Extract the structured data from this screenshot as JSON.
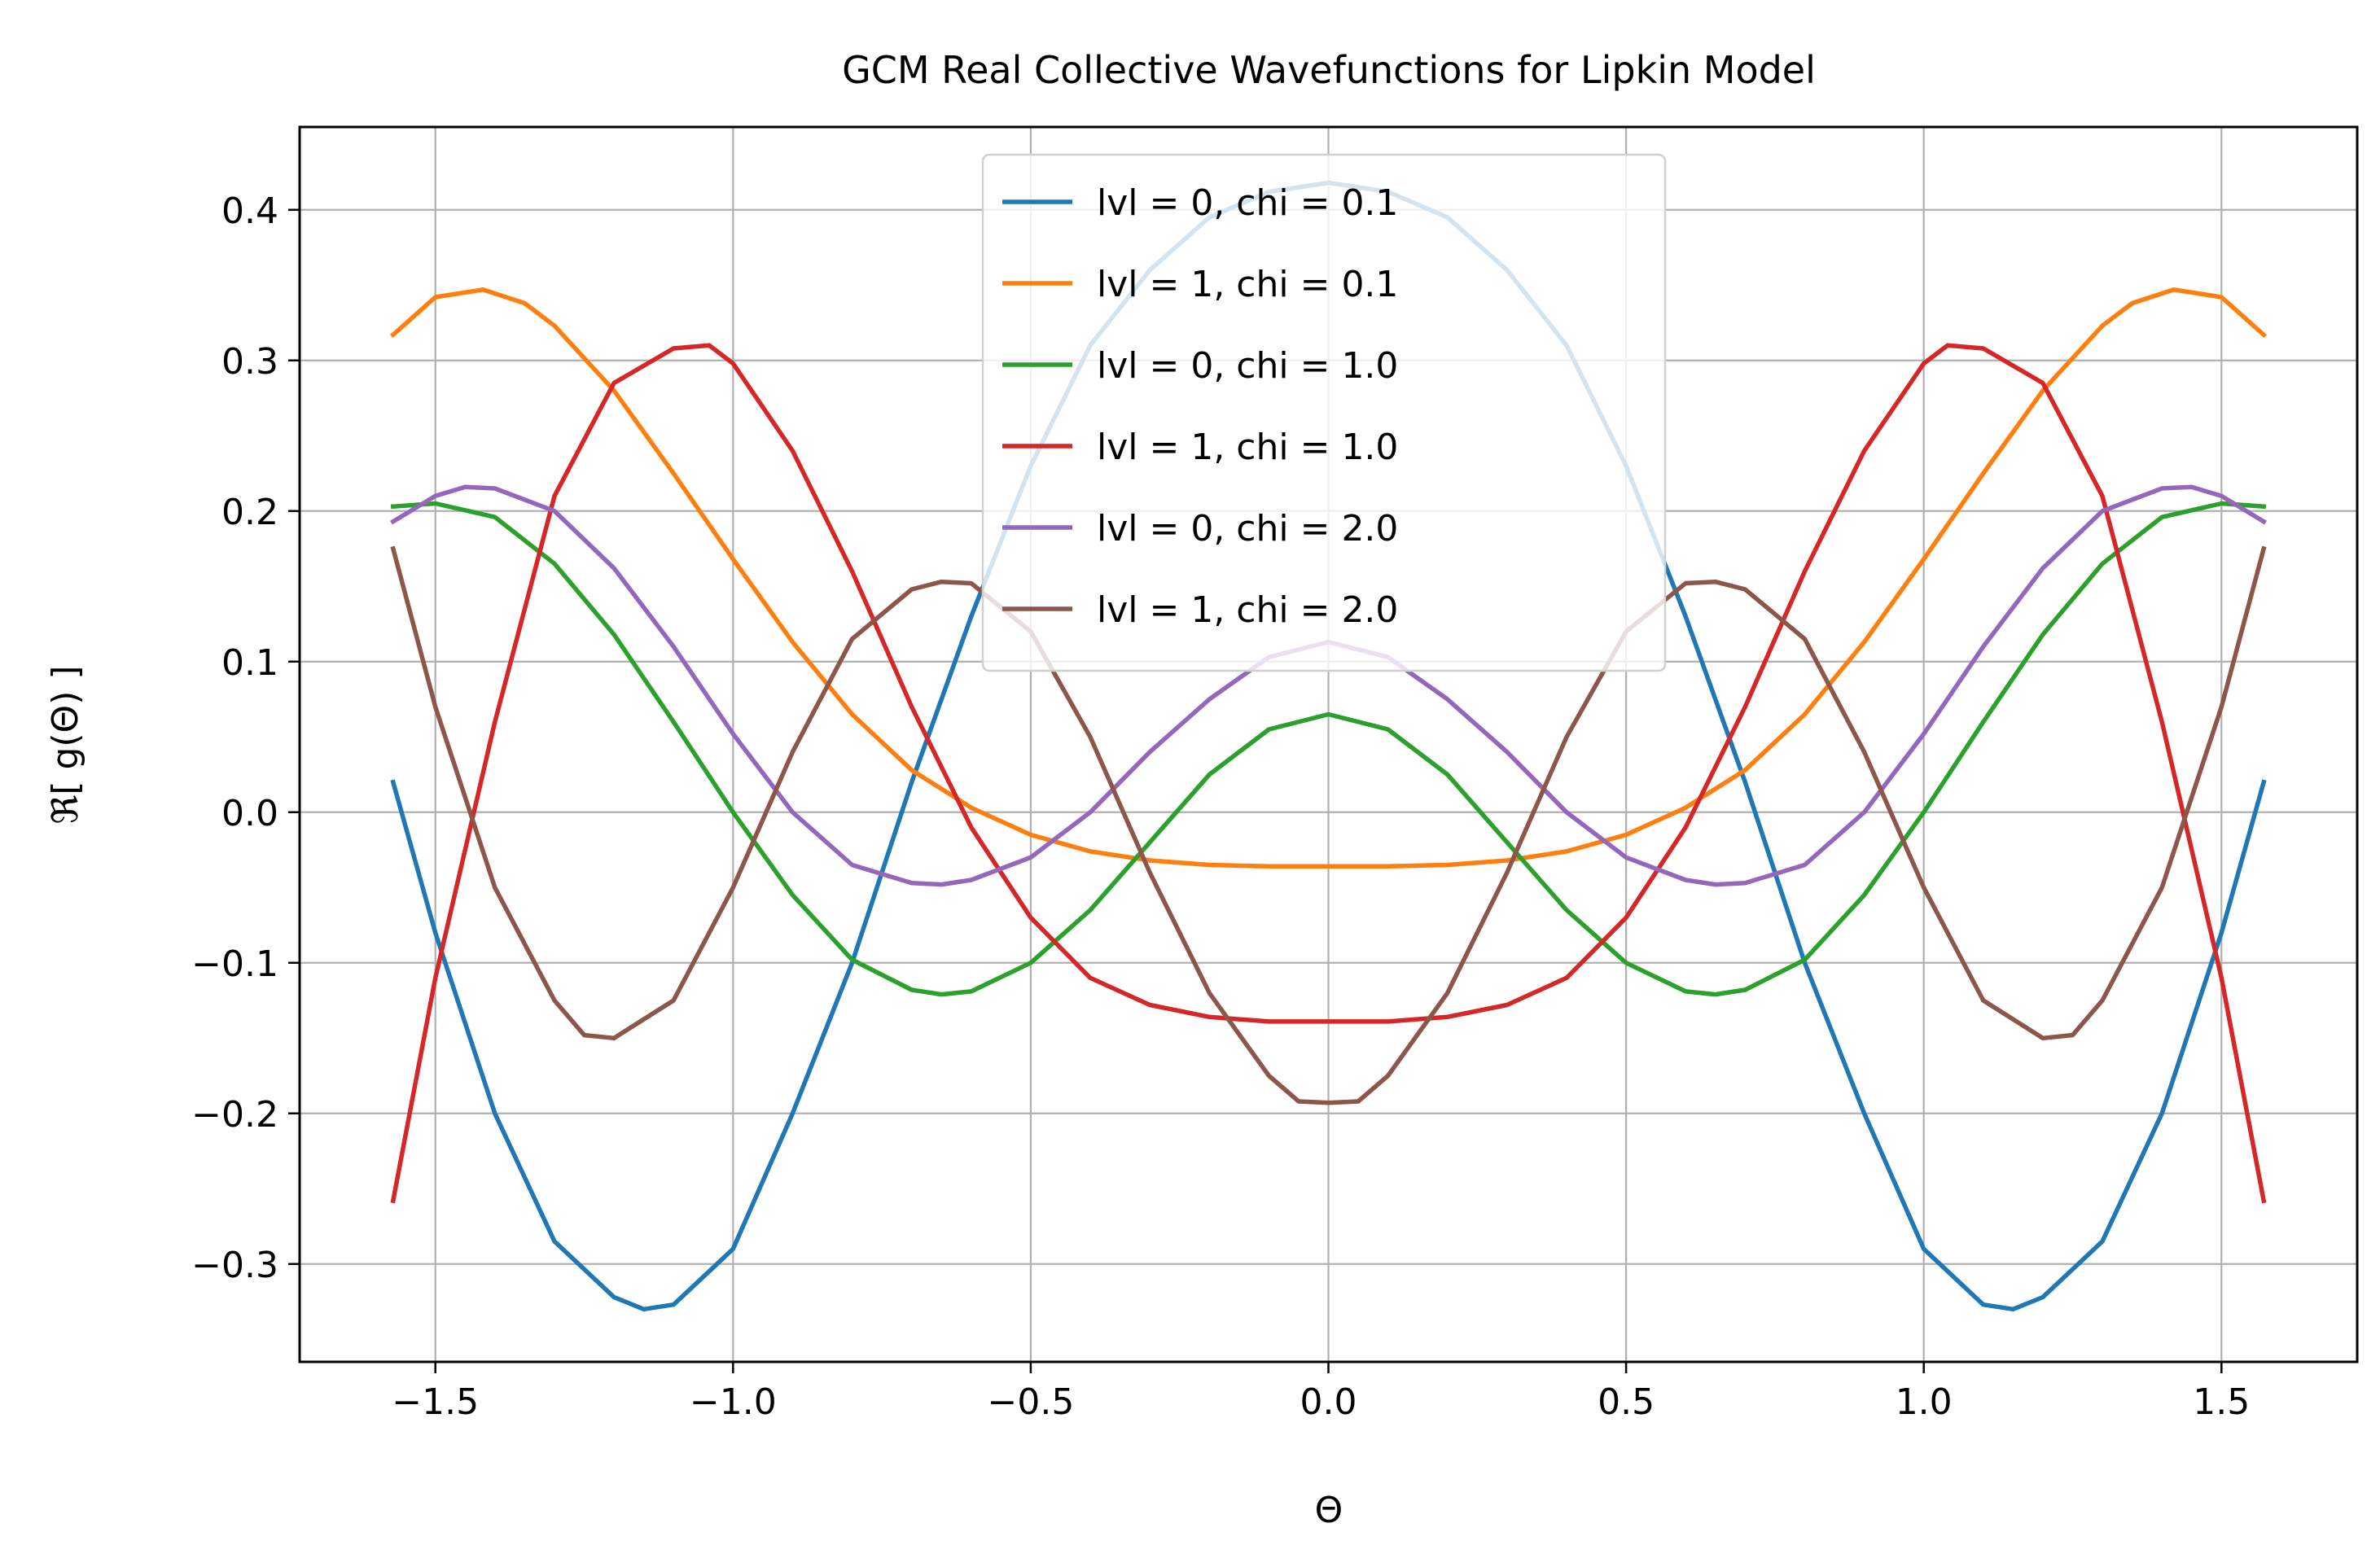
{
  "chart_data": {
    "type": "line",
    "title": "GCM Real Collective Wavefunctions for Lipkin Model",
    "xlabel": "Θ",
    "ylabel": "ℜ[ g(Θ) ]",
    "xlim": [
      -1.728,
      1.728
    ],
    "ylim": [
      -0.365,
      0.455
    ],
    "xticks": [
      -1.5,
      -1.0,
      -0.5,
      0.0,
      0.5,
      1.0,
      1.5
    ],
    "xtick_labels": [
      "−1.5",
      "−1.0",
      "−0.5",
      "0.0",
      "0.5",
      "1.0",
      "1.5"
    ],
    "yticks": [
      -0.3,
      -0.2,
      -0.1,
      0.0,
      0.1,
      0.2,
      0.3,
      0.4
    ],
    "ytick_labels": [
      "−0.3",
      "−0.2",
      "−0.1",
      "0.0",
      "0.1",
      "0.2",
      "0.3",
      "0.4"
    ],
    "grid": true,
    "legend_position": "top-center",
    "series": [
      {
        "name": "lvl = 0, chi = 0.1",
        "color": "#1f77b4",
        "points": [
          [
            -1.571,
            0.02
          ],
          [
            -1.5,
            -0.08
          ],
          [
            -1.4,
            -0.2
          ],
          [
            -1.3,
            -0.285
          ],
          [
            -1.2,
            -0.322
          ],
          [
            -1.15,
            -0.33
          ],
          [
            -1.1,
            -0.327
          ],
          [
            -1.0,
            -0.29
          ],
          [
            -0.9,
            -0.2
          ],
          [
            -0.8,
            -0.1
          ],
          [
            -0.7,
            0.02
          ],
          [
            -0.6,
            0.13
          ],
          [
            -0.5,
            0.23
          ],
          [
            -0.4,
            0.31
          ],
          [
            -0.3,
            0.36
          ],
          [
            -0.2,
            0.395
          ],
          [
            -0.1,
            0.412
          ],
          [
            0.0,
            0.418
          ],
          [
            0.1,
            0.412
          ],
          [
            0.2,
            0.395
          ],
          [
            0.3,
            0.36
          ],
          [
            0.4,
            0.31
          ],
          [
            0.5,
            0.23
          ],
          [
            0.6,
            0.13
          ],
          [
            0.7,
            0.02
          ],
          [
            0.8,
            -0.1
          ],
          [
            0.9,
            -0.2
          ],
          [
            1.0,
            -0.29
          ],
          [
            1.1,
            -0.327
          ],
          [
            1.15,
            -0.33
          ],
          [
            1.2,
            -0.322
          ],
          [
            1.3,
            -0.285
          ],
          [
            1.4,
            -0.2
          ],
          [
            1.5,
            -0.08
          ],
          [
            1.571,
            0.02
          ]
        ]
      },
      {
        "name": "lvl = 1, chi = 0.1",
        "color": "#ff7f0e",
        "points": [
          [
            -1.571,
            0.317
          ],
          [
            -1.5,
            0.342
          ],
          [
            -1.42,
            0.347
          ],
          [
            -1.35,
            0.338
          ],
          [
            -1.3,
            0.323
          ],
          [
            -1.2,
            0.28
          ],
          [
            -1.1,
            0.225
          ],
          [
            -1.0,
            0.168
          ],
          [
            -0.9,
            0.113
          ],
          [
            -0.8,
            0.065
          ],
          [
            -0.7,
            0.028
          ],
          [
            -0.6,
            0.003
          ],
          [
            -0.5,
            -0.015
          ],
          [
            -0.4,
            -0.026
          ],
          [
            -0.3,
            -0.032
          ],
          [
            -0.2,
            -0.035
          ],
          [
            -0.1,
            -0.036
          ],
          [
            0.0,
            -0.036
          ],
          [
            0.1,
            -0.036
          ],
          [
            0.2,
            -0.035
          ],
          [
            0.3,
            -0.032
          ],
          [
            0.4,
            -0.026
          ],
          [
            0.5,
            -0.015
          ],
          [
            0.6,
            0.003
          ],
          [
            0.7,
            0.028
          ],
          [
            0.8,
            0.065
          ],
          [
            0.9,
            0.113
          ],
          [
            1.0,
            0.168
          ],
          [
            1.1,
            0.225
          ],
          [
            1.2,
            0.28
          ],
          [
            1.3,
            0.323
          ],
          [
            1.35,
            0.338
          ],
          [
            1.42,
            0.347
          ],
          [
            1.5,
            0.342
          ],
          [
            1.571,
            0.317
          ]
        ]
      },
      {
        "name": "lvl = 0, chi = 1.0",
        "color": "#2ca02c",
        "points": [
          [
            -1.571,
            0.203
          ],
          [
            -1.5,
            0.205
          ],
          [
            -1.4,
            0.196
          ],
          [
            -1.3,
            0.165
          ],
          [
            -1.2,
            0.118
          ],
          [
            -1.1,
            0.06
          ],
          [
            -1.0,
            0.0
          ],
          [
            -0.9,
            -0.055
          ],
          [
            -0.8,
            -0.098
          ],
          [
            -0.7,
            -0.118
          ],
          [
            -0.65,
            -0.121
          ],
          [
            -0.6,
            -0.119
          ],
          [
            -0.5,
            -0.1
          ],
          [
            -0.4,
            -0.065
          ],
          [
            -0.3,
            -0.02
          ],
          [
            -0.2,
            0.025
          ],
          [
            -0.1,
            0.055
          ],
          [
            0.0,
            0.065
          ],
          [
            0.1,
            0.055
          ],
          [
            0.2,
            0.025
          ],
          [
            0.3,
            -0.02
          ],
          [
            0.4,
            -0.065
          ],
          [
            0.5,
            -0.1
          ],
          [
            0.6,
            -0.119
          ],
          [
            0.65,
            -0.121
          ],
          [
            0.7,
            -0.118
          ],
          [
            0.8,
            -0.098
          ],
          [
            0.9,
            -0.055
          ],
          [
            1.0,
            0.0
          ],
          [
            1.1,
            0.06
          ],
          [
            1.2,
            0.118
          ],
          [
            1.3,
            0.165
          ],
          [
            1.4,
            0.196
          ],
          [
            1.5,
            0.205
          ],
          [
            1.571,
            0.203
          ]
        ]
      },
      {
        "name": "lvl = 1, chi = 1.0",
        "color": "#d62728",
        "points": [
          [
            -1.571,
            -0.258
          ],
          [
            -1.5,
            -0.11
          ],
          [
            -1.4,
            0.06
          ],
          [
            -1.3,
            0.21
          ],
          [
            -1.2,
            0.285
          ],
          [
            -1.1,
            0.308
          ],
          [
            -1.04,
            0.31
          ],
          [
            -1.0,
            0.298
          ],
          [
            -0.9,
            0.24
          ],
          [
            -0.8,
            0.16
          ],
          [
            -0.7,
            0.07
          ],
          [
            -0.6,
            -0.01
          ],
          [
            -0.5,
            -0.07
          ],
          [
            -0.4,
            -0.11
          ],
          [
            -0.3,
            -0.128
          ],
          [
            -0.2,
            -0.136
          ],
          [
            -0.1,
            -0.139
          ],
          [
            0.0,
            -0.139
          ],
          [
            0.1,
            -0.139
          ],
          [
            0.2,
            -0.136
          ],
          [
            0.3,
            -0.128
          ],
          [
            0.4,
            -0.11
          ],
          [
            0.5,
            -0.07
          ],
          [
            0.6,
            -0.01
          ],
          [
            0.7,
            0.07
          ],
          [
            0.8,
            0.16
          ],
          [
            0.9,
            0.24
          ],
          [
            1.0,
            0.298
          ],
          [
            1.04,
            0.31
          ],
          [
            1.1,
            0.308
          ],
          [
            1.2,
            0.285
          ],
          [
            1.3,
            0.21
          ],
          [
            1.4,
            0.06
          ],
          [
            1.5,
            -0.11
          ],
          [
            1.571,
            -0.258
          ]
        ]
      },
      {
        "name": "lvl = 0, chi = 2.0",
        "color": "#9467bd",
        "points": [
          [
            -1.571,
            0.193
          ],
          [
            -1.5,
            0.21
          ],
          [
            -1.45,
            0.216
          ],
          [
            -1.4,
            0.215
          ],
          [
            -1.3,
            0.2
          ],
          [
            -1.2,
            0.162
          ],
          [
            -1.1,
            0.11
          ],
          [
            -1.0,
            0.052
          ],
          [
            -0.9,
            0.0
          ],
          [
            -0.8,
            -0.035
          ],
          [
            -0.7,
            -0.047
          ],
          [
            -0.65,
            -0.048
          ],
          [
            -0.6,
            -0.045
          ],
          [
            -0.5,
            -0.03
          ],
          [
            -0.4,
            0.0
          ],
          [
            -0.3,
            0.04
          ],
          [
            -0.2,
            0.075
          ],
          [
            -0.1,
            0.103
          ],
          [
            0.0,
            0.113
          ],
          [
            0.1,
            0.103
          ],
          [
            0.2,
            0.075
          ],
          [
            0.3,
            0.04
          ],
          [
            0.4,
            0.0
          ],
          [
            0.5,
            -0.03
          ],
          [
            0.6,
            -0.045
          ],
          [
            0.65,
            -0.048
          ],
          [
            0.7,
            -0.047
          ],
          [
            0.8,
            -0.035
          ],
          [
            0.9,
            0.0
          ],
          [
            1.0,
            0.052
          ],
          [
            1.1,
            0.11
          ],
          [
            1.2,
            0.162
          ],
          [
            1.3,
            0.2
          ],
          [
            1.4,
            0.215
          ],
          [
            1.45,
            0.216
          ],
          [
            1.5,
            0.21
          ],
          [
            1.571,
            0.193
          ]
        ]
      },
      {
        "name": "lvl = 1, chi = 2.0",
        "color": "#8c564b",
        "points": [
          [
            -1.571,
            0.175
          ],
          [
            -1.5,
            0.07
          ],
          [
            -1.4,
            -0.05
          ],
          [
            -1.3,
            -0.125
          ],
          [
            -1.25,
            -0.148
          ],
          [
            -1.2,
            -0.15
          ],
          [
            -1.1,
            -0.125
          ],
          [
            -1.0,
            -0.05
          ],
          [
            -0.9,
            0.04
          ],
          [
            -0.8,
            0.115
          ],
          [
            -0.7,
            0.148
          ],
          [
            -0.65,
            0.153
          ],
          [
            -0.6,
            0.152
          ],
          [
            -0.5,
            0.12
          ],
          [
            -0.4,
            0.05
          ],
          [
            -0.3,
            -0.04
          ],
          [
            -0.2,
            -0.12
          ],
          [
            -0.1,
            -0.175
          ],
          [
            -0.05,
            -0.192
          ],
          [
            0.0,
            -0.193
          ],
          [
            0.05,
            -0.192
          ],
          [
            0.1,
            -0.175
          ],
          [
            0.2,
            -0.12
          ],
          [
            0.3,
            -0.04
          ],
          [
            0.4,
            0.05
          ],
          [
            0.5,
            0.12
          ],
          [
            0.6,
            0.152
          ],
          [
            0.65,
            0.153
          ],
          [
            0.7,
            0.148
          ],
          [
            0.8,
            0.115
          ],
          [
            0.9,
            0.04
          ],
          [
            1.0,
            -0.05
          ],
          [
            1.1,
            -0.125
          ],
          [
            1.2,
            -0.15
          ],
          [
            1.25,
            -0.148
          ],
          [
            1.3,
            -0.125
          ],
          [
            1.4,
            -0.05
          ],
          [
            1.5,
            0.07
          ],
          [
            1.571,
            0.175
          ]
        ]
      }
    ]
  }
}
